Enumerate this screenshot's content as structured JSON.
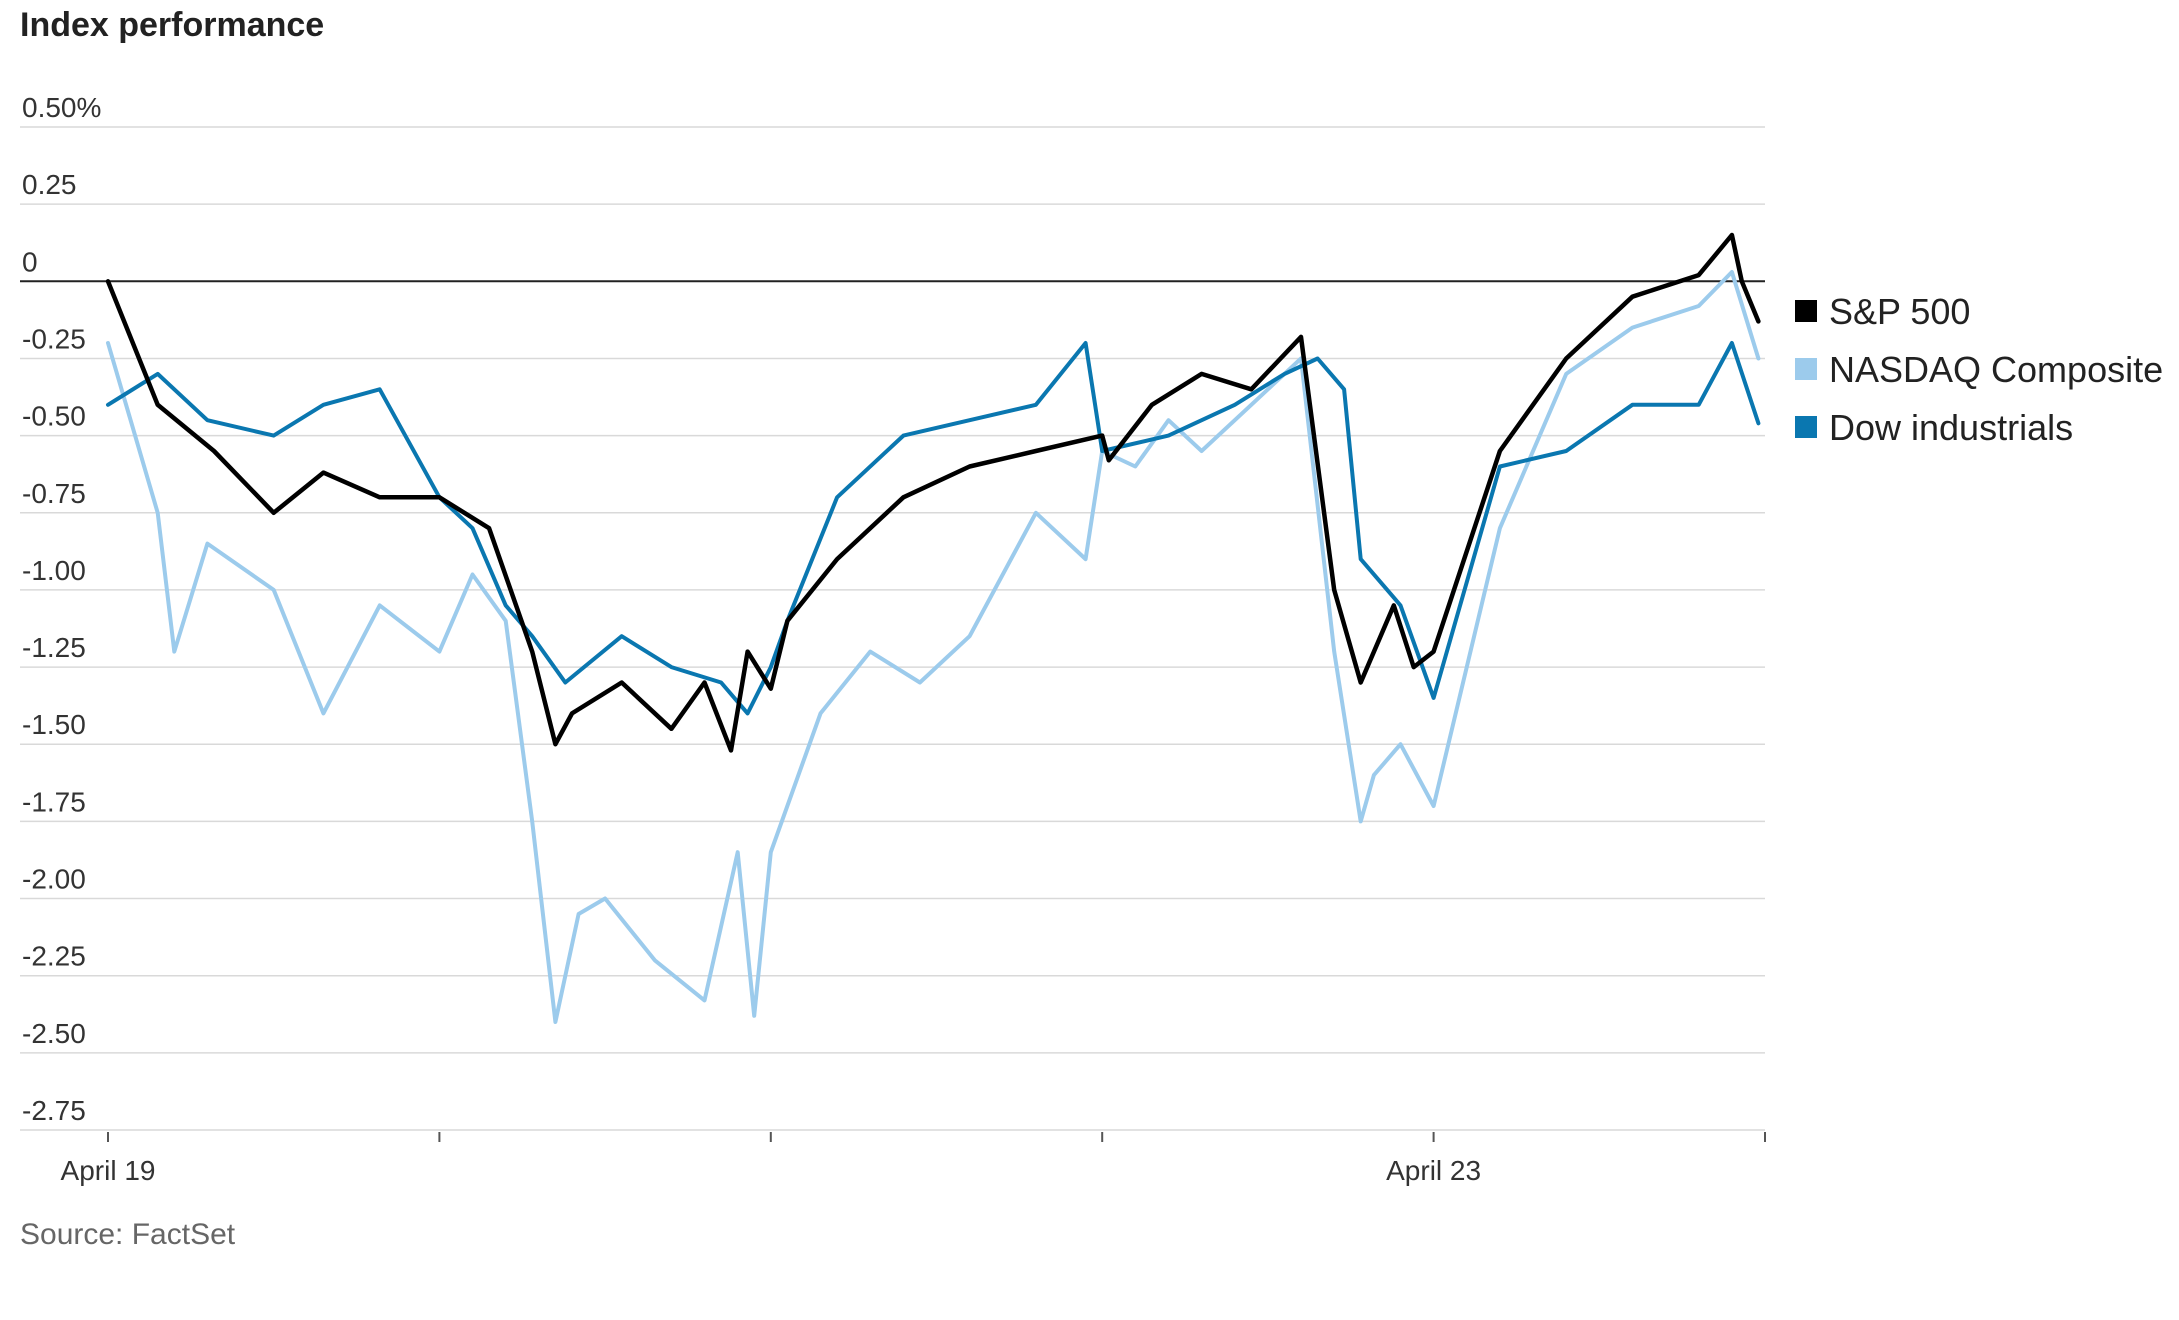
{
  "title": "Index performance",
  "source": "Source: FactSet",
  "chart_data": {
    "type": "line",
    "title": "Index performance",
    "xlabel": "",
    "ylabel": "",
    "ylim": [
      -2.75,
      0.5
    ],
    "y_ticks": [
      0.5,
      0.25,
      0,
      -0.25,
      -0.5,
      -0.75,
      -1.0,
      -1.25,
      -1.5,
      -1.75,
      -2.0,
      -2.25,
      -2.5,
      -2.75
    ],
    "y_tick_labels": [
      "0.50%",
      "0.25",
      "0",
      "-0.25",
      "-0.50",
      "-0.75",
      "-1.00",
      "-1.25",
      "-1.50",
      "-1.75",
      "-2.00",
      "-2.25",
      "-2.50",
      "-2.75"
    ],
    "x_tick_count": 6,
    "x_tick_labels": [
      {
        "index": 0,
        "text": "April 19"
      },
      {
        "index": 4,
        "text": "April 23"
      }
    ],
    "xlim": [
      0,
      5
    ],
    "grid": true,
    "legend_position": "right",
    "series": [
      {
        "name": "S&P 500",
        "color": "#000000",
        "x": [
          0,
          0.15,
          0.32,
          0.5,
          0.65,
          0.82,
          1.0,
          1.15,
          1.28,
          1.35,
          1.4,
          1.55,
          1.7,
          1.8,
          1.88,
          1.93,
          2.0,
          2.05,
          2.2,
          2.4,
          2.6,
          2.8,
          3.0,
          3.02,
          3.15,
          3.3,
          3.45,
          3.6,
          3.7,
          3.78,
          3.88,
          3.94,
          4.0,
          4.2,
          4.4,
          4.6,
          4.8,
          4.9,
          4.93,
          4.98
        ],
        "y": [
          0.0,
          -0.4,
          -0.55,
          -0.75,
          -0.62,
          -0.7,
          -0.7,
          -0.8,
          -1.2,
          -1.5,
          -1.4,
          -1.3,
          -1.45,
          -1.3,
          -1.52,
          -1.2,
          -1.32,
          -1.1,
          -0.9,
          -0.7,
          -0.6,
          -0.55,
          -0.5,
          -0.58,
          -0.4,
          -0.3,
          -0.35,
          -0.18,
          -1.0,
          -1.3,
          -1.05,
          -1.25,
          -1.2,
          -0.55,
          -0.25,
          -0.05,
          0.02,
          0.15,
          0.0,
          -0.13
        ]
      },
      {
        "name": "NASDAQ Composite",
        "color": "#9ccbec",
        "x": [
          0,
          0.15,
          0.2,
          0.3,
          0.5,
          0.65,
          0.82,
          1.0,
          1.1,
          1.2,
          1.28,
          1.35,
          1.42,
          1.5,
          1.65,
          1.8,
          1.9,
          1.95,
          2.0,
          2.15,
          2.3,
          2.45,
          2.6,
          2.8,
          2.95,
          3.0,
          3.1,
          3.2,
          3.3,
          3.45,
          3.6,
          3.7,
          3.78,
          3.82,
          3.9,
          4.0,
          4.2,
          4.4,
          4.6,
          4.8,
          4.9,
          4.98
        ],
        "y": [
          -0.2,
          -0.75,
          -1.2,
          -0.85,
          -1.0,
          -1.4,
          -1.05,
          -1.2,
          -0.95,
          -1.1,
          -1.75,
          -2.4,
          -2.05,
          -2.0,
          -2.2,
          -2.33,
          -1.85,
          -2.38,
          -1.85,
          -1.4,
          -1.2,
          -1.3,
          -1.15,
          -0.75,
          -0.9,
          -0.55,
          -0.6,
          -0.45,
          -0.55,
          -0.4,
          -0.25,
          -1.2,
          -1.75,
          -1.6,
          -1.5,
          -1.7,
          -0.8,
          -0.3,
          -0.15,
          -0.08,
          0.03,
          -0.25
        ]
      },
      {
        "name": "Dow industrials",
        "color": "#0a77b0",
        "x": [
          0,
          0.15,
          0.3,
          0.5,
          0.65,
          0.82,
          1.0,
          1.1,
          1.2,
          1.28,
          1.38,
          1.55,
          1.7,
          1.85,
          1.93,
          2.0,
          2.05,
          2.2,
          2.4,
          2.6,
          2.8,
          2.95,
          3.0,
          3.2,
          3.4,
          3.55,
          3.65,
          3.73,
          3.78,
          3.9,
          4.0,
          4.2,
          4.4,
          4.6,
          4.8,
          4.9,
          4.98
        ],
        "y": [
          -0.4,
          -0.3,
          -0.45,
          -0.5,
          -0.4,
          -0.35,
          -0.7,
          -0.8,
          -1.05,
          -1.15,
          -1.3,
          -1.15,
          -1.25,
          -1.3,
          -1.4,
          -1.25,
          -1.1,
          -0.7,
          -0.5,
          -0.45,
          -0.4,
          -0.2,
          -0.55,
          -0.5,
          -0.4,
          -0.3,
          -0.25,
          -0.35,
          -0.9,
          -1.05,
          -1.35,
          -0.6,
          -0.55,
          -0.4,
          -0.4,
          -0.2,
          -0.46
        ]
      }
    ]
  }
}
